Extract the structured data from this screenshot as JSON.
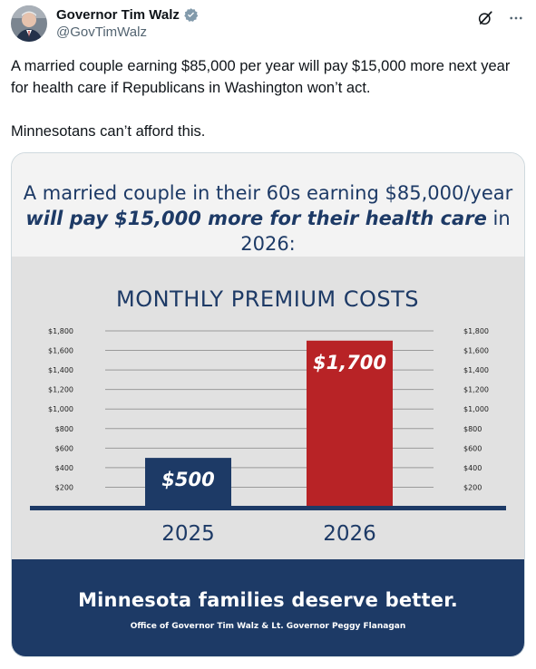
{
  "tweet": {
    "author": {
      "display_name": "Governor Tim Walz",
      "handle": "@GovTimWalz",
      "verified": true
    },
    "header_icons": [
      "grok-icon",
      "more-icon"
    ],
    "text": [
      "A married couple earning $85,000 per year will pay $15,000 more next year for health care if Republicans in Washington won’t act.",
      "Minnesotans can’t afford this."
    ]
  },
  "media": {
    "headline_line1": "A married couple in their 60s earning $85,000/year",
    "headline_line2_emph": "will pay $15,000 more for their health care",
    "headline_line2_rest": " in 2026:",
    "footer_title": "Minnesota families deserve better.",
    "footer_sub": "Office of Governor Tim Walz & Lt. Governor Peggy Flanagan",
    "colors": {
      "navy": "#1d3a66",
      "red": "#b82326",
      "panel": "#e1e1e1",
      "top": "#f3f3f3"
    }
  },
  "chart_data": {
    "type": "bar",
    "title": "MONTHLY PREMIUM COSTS",
    "categories": [
      "2025",
      "2026"
    ],
    "values": [
      500,
      1700
    ],
    "data_labels": [
      "$500",
      "$1,700"
    ],
    "bar_colors": [
      "#1d3a66",
      "#b82326"
    ],
    "y_ticks": [
      200,
      400,
      600,
      800,
      1000,
      1200,
      1400,
      1600,
      1800
    ],
    "y_tick_labels": [
      "$200",
      "$400",
      "$600",
      "$800",
      "$1,000",
      "$1,200",
      "$1,400",
      "$1,600",
      "$1,800"
    ],
    "ylim": [
      0,
      1800
    ],
    "grid": true,
    "axis_labels_both_sides": true
  }
}
